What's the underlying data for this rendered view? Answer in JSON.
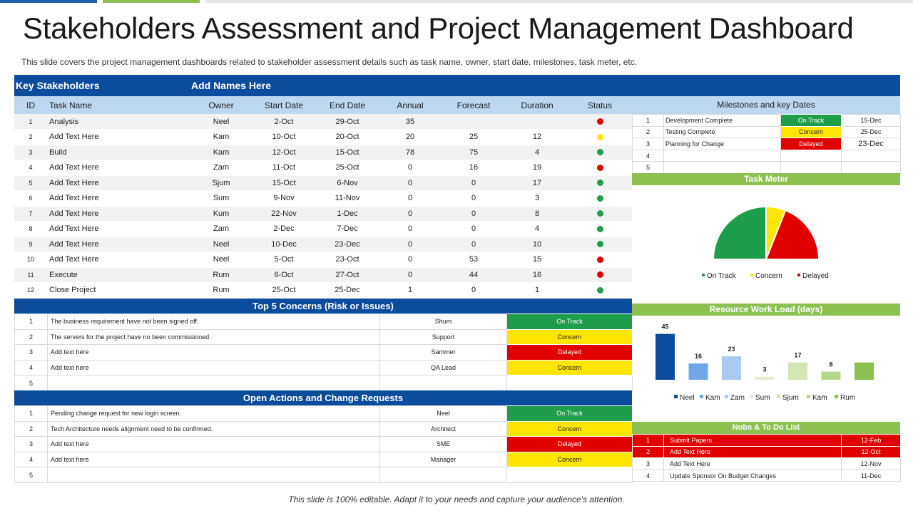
{
  "title": "Stakeholders Assessment and Project Management Dashboard",
  "subtitle": "This slide covers the project management dashboards related to stakeholder assessment details such as task name, owner, start date, milestones, task meter, etc.",
  "footer": "This slide is 100% editable. Adapt it to your needs and capture your audience's attention.",
  "colors": {
    "blue": "#0b4c9c",
    "light_blue": "#bdd7ee",
    "green": "#1e9e4a",
    "yellow": "#ffe600",
    "red": "#e00000",
    "bar_green": "#8cc152"
  },
  "main": {
    "key_stakeholders": "Key Stakeholders",
    "add_names": "Add Names Here",
    "headers": [
      "ID",
      "Task Name",
      "Owner",
      "Start Date",
      "End Date",
      "Annual",
      "Forecast",
      "Duration",
      "Status"
    ],
    "rows": [
      {
        "id": "1",
        "task": "Analysis",
        "owner": "Neel",
        "start": "2-Oct",
        "end": "29-Oct",
        "annual": "35",
        "forecast": "",
        "duration": "",
        "status": "red"
      },
      {
        "id": "2",
        "task": "Add Text Here",
        "owner": "Kam",
        "start": "10-Oct",
        "end": "20-Oct",
        "annual": "20",
        "forecast": "25",
        "duration": "12",
        "status": "yellow"
      },
      {
        "id": "3",
        "task": "Build",
        "owner": "Kam",
        "start": "12-Oct",
        "end": "15-Oct",
        "annual": "78",
        "forecast": "75",
        "duration": "4",
        "status": "green"
      },
      {
        "id": "4",
        "task": "Add Text Here",
        "owner": "Zam",
        "start": "11-Oct",
        "end": "25-Oct",
        "annual": "0",
        "forecast": "16",
        "duration": "19",
        "status": "red"
      },
      {
        "id": "5",
        "task": "Add Text Here",
        "owner": "Sjum",
        "start": "15-Oct",
        "end": "6-Nov",
        "annual": "0",
        "forecast": "0",
        "duration": "17",
        "status": "green"
      },
      {
        "id": "6",
        "task": "Add Text Here",
        "owner": "Sum",
        "start": "9-Nov",
        "end": "11-Nov",
        "annual": "0",
        "forecast": "0",
        "duration": "3",
        "status": "green"
      },
      {
        "id": "7",
        "task": "Add Text Here",
        "owner": "Kum",
        "start": "22-Nov",
        "end": "1-Dec",
        "annual": "0",
        "forecast": "0",
        "duration": "8",
        "status": "green"
      },
      {
        "id": "8",
        "task": "Add Text Here",
        "owner": "Zam",
        "start": "2-Dec",
        "end": "7-Dec",
        "annual": "0",
        "forecast": "0",
        "duration": "4",
        "status": "green"
      },
      {
        "id": "9",
        "task": "Add Text Here",
        "owner": "Neel",
        "start": "10-Dec",
        "end": "23-Dec",
        "annual": "0",
        "forecast": "0",
        "duration": "10",
        "status": "green"
      },
      {
        "id": "10",
        "task": "Add Text Here",
        "owner": "Neel",
        "start": "5-Oct",
        "end": "23-Oct",
        "annual": "0",
        "forecast": "53",
        "duration": "15",
        "status": "red"
      },
      {
        "id": "11",
        "task": "Execute",
        "owner": "Rum",
        "start": "6-Oct",
        "end": "27-Oct",
        "annual": "0",
        "forecast": "44",
        "duration": "16",
        "status": "red"
      },
      {
        "id": "12",
        "task": "Close Project",
        "owner": "Rum",
        "start": "25-Oct",
        "end": "25-Dec",
        "annual": "1",
        "forecast": "0",
        "duration": "1",
        "status": "green"
      }
    ]
  },
  "concerns": {
    "title": "Top 5 Concerns (Risk  or Issues)",
    "rows": [
      {
        "id": "1",
        "text": "The business requirement have not been signed off.",
        "owner": "Shum",
        "status": "On Track",
        "color": "green"
      },
      {
        "id": "2",
        "text": "The servers for the project have no been commissioned.",
        "owner": "Support",
        "status": "Concern",
        "color": "yellow"
      },
      {
        "id": "3",
        "text": "Add text here",
        "owner": "Sammer",
        "status": "Delayed",
        "color": "red"
      },
      {
        "id": "4",
        "text": "Add text here",
        "owner": "QA Lead",
        "status": "Concern",
        "color": "yellow"
      },
      {
        "id": "5",
        "text": "",
        "owner": "",
        "status": "",
        "color": ""
      }
    ]
  },
  "actions": {
    "title": "Open Actions  and Change Requests",
    "rows": [
      {
        "id": "1",
        "text": "Pending change request for new login screen.",
        "owner": "Neel",
        "status": "On Track",
        "color": "green"
      },
      {
        "id": "2",
        "text": "Tech Architecture needs alignment need to be confirmed.",
        "owner": "Architect",
        "status": "Concern",
        "color": "yellow"
      },
      {
        "id": "3",
        "text": "Add text here",
        "owner": "SME",
        "status": "Delayed",
        "color": "red"
      },
      {
        "id": "4",
        "text": "Add text here",
        "owner": "Manager",
        "status": "Concern",
        "color": "yellow"
      },
      {
        "id": "5",
        "text": "",
        "owner": "",
        "status": "",
        "color": ""
      }
    ]
  },
  "milestones": {
    "title": "Milestones and key Dates",
    "rows": [
      {
        "id": "1",
        "name": "Development Complete",
        "status": "On Track",
        "color": "green",
        "date": "15-Dec"
      },
      {
        "id": "2",
        "name": "Testing Complete",
        "status": "Concern",
        "color": "yellow",
        "date": "25-Dec"
      },
      {
        "id": "3",
        "name": "Planning  for Change",
        "status": "Delayed",
        "color": "red",
        "date": "23-Dec"
      },
      {
        "id": "4",
        "name": "",
        "status": "",
        "color": "",
        "date": ""
      },
      {
        "id": "5",
        "name": "",
        "status": "",
        "color": "",
        "date": ""
      }
    ]
  },
  "task_meter_title": "Task Meter",
  "workload_title": "Resource Work Load (days)",
  "todo": {
    "title": "Nobs & To Do List",
    "rows": [
      {
        "id": "1",
        "text": "Submit Papers",
        "date": "12-Feb",
        "highlight": true
      },
      {
        "id": "2",
        "text": "Add Text Here",
        "date": "12-Oct",
        "highlight": true
      },
      {
        "id": "3",
        "text": "Add Text Here",
        "date": "12-Nov",
        "highlight": false
      },
      {
        "id": "4",
        "text": "Update Sponsor On Budget Changes",
        "date": "11-Dec",
        "highlight": false
      }
    ]
  },
  "chart_data": [
    {
      "type": "pie",
      "title": "Task Meter",
      "half_donut": true,
      "legend_position": "bottom",
      "labels": [
        "On Track",
        "Concern",
        "Delayed"
      ],
      "values": [
        50,
        12,
        38
      ],
      "colors": [
        "#1e9e4a",
        "#ffe600",
        "#e00000"
      ]
    },
    {
      "type": "bar",
      "title": "Resource Work Load (days)",
      "categories": [
        "Neel",
        "Kam",
        "Zam",
        "Sum",
        "Sjum",
        "Kam",
        "Rum"
      ],
      "values": [
        45,
        16,
        23,
        3,
        17,
        8,
        17
      ],
      "data_labels": [
        "45",
        "16",
        "23",
        "3",
        "17",
        "8",
        ""
      ],
      "colors": [
        "#0b4c9c",
        "#6fa8e8",
        "#a9cbf2",
        "#e4edd0",
        "#d3e6b4",
        "#b6d88c",
        "#8cc152"
      ],
      "ylim": [
        0,
        50
      ],
      "grid": false,
      "legend_position": "bottom"
    }
  ]
}
